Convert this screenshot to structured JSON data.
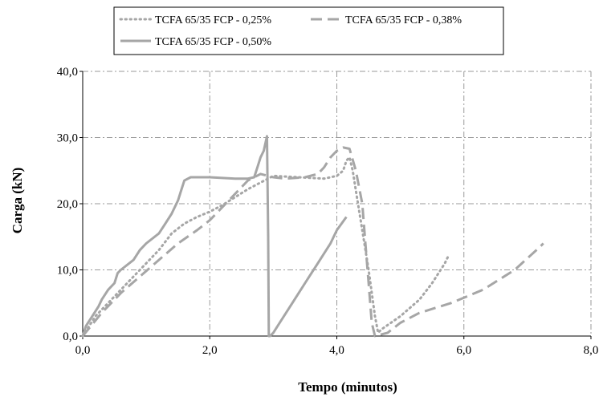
{
  "chart_data": {
    "type": "line",
    "title": "",
    "xlabel": "Tempo (minutos)",
    "ylabel": "Carga (kN)",
    "xlim": [
      0,
      8
    ],
    "ylim": [
      0,
      40
    ],
    "x_ticks": [
      0,
      2,
      4,
      6,
      8
    ],
    "x_tick_labels": [
      "0,0",
      "2,0",
      "4,0",
      "6,0",
      "8,0"
    ],
    "y_ticks": [
      0,
      10,
      20,
      30,
      40
    ],
    "y_tick_labels": [
      "0,0",
      "10,0",
      "20,0",
      "30,0",
      "40,0"
    ],
    "grid": true,
    "legend_position": "top",
    "series": [
      {
        "name": "TCFA 65/35 FCP - 0,25%",
        "style": "dotted",
        "color": "#a6a6a6",
        "points": [
          [
            0,
            0
          ],
          [
            0.2,
            3
          ],
          [
            0.4,
            5
          ],
          [
            0.6,
            7
          ],
          [
            0.8,
            9
          ],
          [
            1.0,
            11
          ],
          [
            1.2,
            13
          ],
          [
            1.4,
            15.5
          ],
          [
            1.6,
            17
          ],
          [
            1.8,
            18
          ],
          [
            2.0,
            18.8
          ],
          [
            2.2,
            19.8
          ],
          [
            2.4,
            21
          ],
          [
            2.6,
            22.2
          ],
          [
            2.8,
            23.2
          ],
          [
            3.0,
            24.2
          ],
          [
            3.4,
            24
          ],
          [
            3.8,
            23.8
          ],
          [
            4.0,
            24.2
          ],
          [
            4.1,
            25
          ],
          [
            4.15,
            26.5
          ],
          [
            4.2,
            27
          ],
          [
            4.25,
            25
          ],
          [
            4.3,
            22
          ],
          [
            4.4,
            16
          ],
          [
            4.5,
            10
          ],
          [
            4.6,
            3
          ],
          [
            4.65,
            0.5
          ],
          [
            4.7,
            1
          ],
          [
            5.0,
            3
          ],
          [
            5.3,
            5.5
          ],
          [
            5.5,
            8
          ],
          [
            5.7,
            11
          ],
          [
            5.75,
            12
          ]
        ]
      },
      {
        "name": "TCFA 65/35 FCP - 0,38%",
        "style": "dashed",
        "color": "#a6a6a6",
        "points": [
          [
            0,
            0
          ],
          [
            0.3,
            3.5
          ],
          [
            0.6,
            6.5
          ],
          [
            0.9,
            9
          ],
          [
            1.2,
            11.5
          ],
          [
            1.5,
            14
          ],
          [
            1.8,
            16
          ],
          [
            2.0,
            17.5
          ],
          [
            2.3,
            20.5
          ],
          [
            2.6,
            23.5
          ],
          [
            2.8,
            24.5
          ],
          [
            3.0,
            24
          ],
          [
            3.2,
            23.8
          ],
          [
            3.5,
            24
          ],
          [
            3.7,
            24.5
          ],
          [
            3.8,
            25.5
          ],
          [
            3.9,
            27
          ],
          [
            4.0,
            28
          ],
          [
            4.1,
            28.5
          ],
          [
            4.2,
            28.3
          ],
          [
            4.3,
            25
          ],
          [
            4.4,
            20
          ],
          [
            4.45,
            14
          ],
          [
            4.5,
            8
          ],
          [
            4.55,
            2
          ],
          [
            4.6,
            0
          ],
          [
            4.8,
            0.5
          ],
          [
            5.0,
            2
          ],
          [
            5.3,
            3.5
          ],
          [
            5.8,
            5
          ],
          [
            6.3,
            7
          ],
          [
            6.8,
            10
          ],
          [
            7.2,
            13.5
          ],
          [
            7.25,
            14
          ]
        ]
      },
      {
        "name": "TCFA 65/35 FCP - 0,50%",
        "style": "solid",
        "color": "#a6a6a6",
        "points": [
          [
            0,
            0
          ],
          [
            0.05,
            1.5
          ],
          [
            0.15,
            3
          ],
          [
            0.25,
            4.5
          ],
          [
            0.3,
            5.5
          ],
          [
            0.4,
            7
          ],
          [
            0.5,
            8
          ],
          [
            0.55,
            9.5
          ],
          [
            0.6,
            10
          ],
          [
            0.8,
            11.5
          ],
          [
            0.9,
            13
          ],
          [
            1.0,
            14
          ],
          [
            1.2,
            15.5
          ],
          [
            1.3,
            17
          ],
          [
            1.4,
            18.5
          ],
          [
            1.5,
            20.5
          ],
          [
            1.55,
            22
          ],
          [
            1.6,
            23.5
          ],
          [
            1.7,
            24
          ],
          [
            2.0,
            24
          ],
          [
            2.4,
            23.8
          ],
          [
            2.6,
            23.8
          ],
          [
            2.7,
            24
          ],
          [
            2.75,
            25.5
          ],
          [
            2.8,
            27
          ],
          [
            2.85,
            28
          ],
          [
            2.9,
            30.2
          ],
          [
            2.92,
            15
          ],
          [
            2.93,
            0
          ],
          [
            2.95,
            0
          ],
          [
            3.0,
            0.5
          ],
          [
            3.1,
            2
          ],
          [
            3.3,
            5
          ],
          [
            3.5,
            8
          ],
          [
            3.7,
            11
          ],
          [
            3.9,
            14
          ],
          [
            4.0,
            16
          ],
          [
            4.15,
            18
          ]
        ]
      }
    ]
  }
}
